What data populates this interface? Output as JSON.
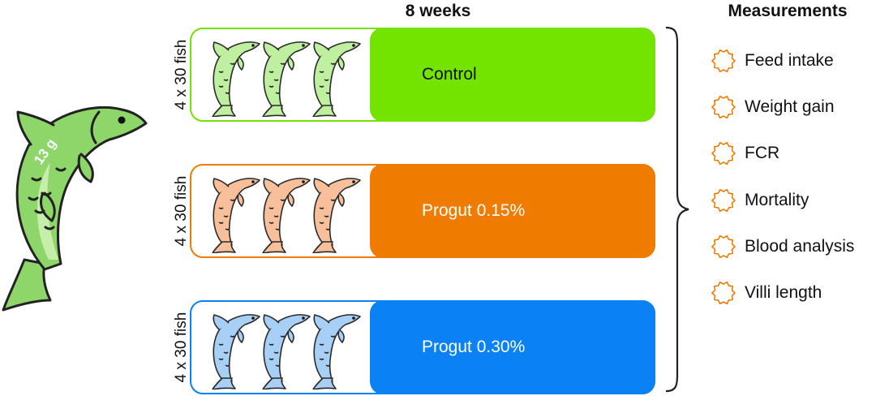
{
  "duration": "8 weeks",
  "measurements_title": "Measurements",
  "big_fish_weight": "13 g",
  "groups": [
    {
      "label": "Control",
      "count": "4 x 30 fish",
      "color": "#72e400",
      "fish_fill": "#bff0a0",
      "fish_stroke": "#2a2a2a"
    },
    {
      "label": "Progut 0.15%",
      "count": "4 x 30 fish",
      "color": "#ef7c00",
      "fish_fill": "#f7c09a",
      "fish_stroke": "#2a2a2a"
    },
    {
      "label": "Progut 0.30%",
      "count": "4 x 30 fish",
      "color": "#0a82f5",
      "fish_fill": "#a8cff5",
      "fish_stroke": "#2a2a2a"
    }
  ],
  "measurements": [
    {
      "label": "Feed intake",
      "icon": "gear-outline-icon"
    },
    {
      "label": "Weight gain",
      "icon": "gear-outline-icon"
    },
    {
      "label": "FCR",
      "icon": "gear-outline-icon"
    },
    {
      "label": "Mortality",
      "icon": "gear-outline-icon"
    },
    {
      "label": "Blood analysis",
      "icon": "gear-outline-icon"
    },
    {
      "label": "Villi length",
      "icon": "gear-outline-icon"
    }
  ],
  "colors": {
    "big_fish": "#8ed66a",
    "big_fish_light": "#c6eeaa",
    "icon": "#ef7c00"
  }
}
